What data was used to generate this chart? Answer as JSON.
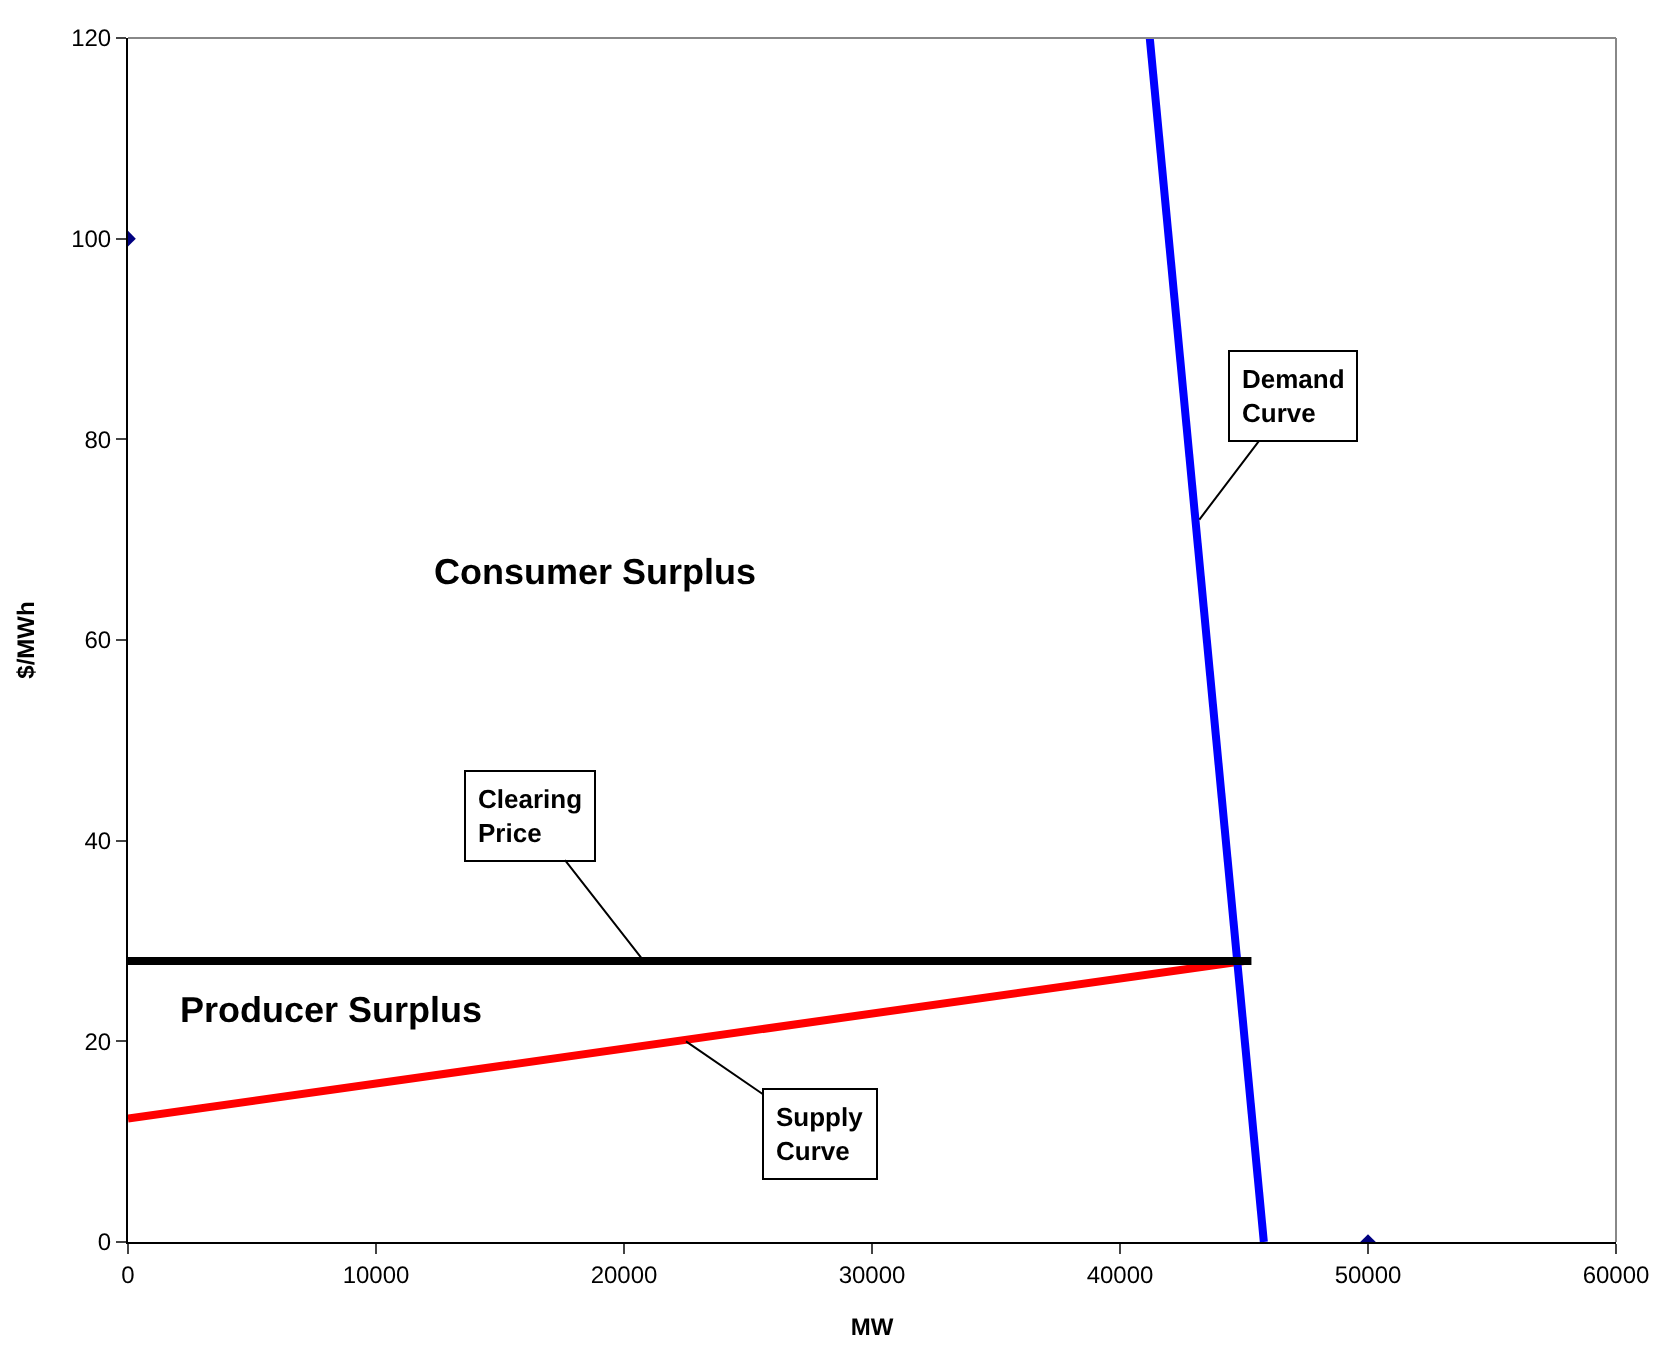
{
  "chart_data": {
    "type": "line",
    "xlabel": "MW",
    "ylabel": "$/MWh",
    "xlim": [
      0,
      60000
    ],
    "xticks": [
      0,
      10000,
      20000,
      30000,
      40000,
      50000,
      60000
    ],
    "ylim": [
      0,
      120
    ],
    "yticks": [
      0,
      20,
      40,
      60,
      80,
      100,
      120
    ],
    "marker": "none",
    "line_style": "solid",
    "series": [
      {
        "color": "#ff0000",
        "x": [
          0,
          45000
        ],
        "values": [
          12.3,
          28
        ]
      },
      {
        "color": "#0000ff",
        "x": [
          41200,
          45800
        ],
        "values": [
          120,
          0
        ]
      },
      {
        "color": "#000000",
        "x": [
          0,
          45300
        ],
        "values": [
          28,
          28
        ]
      },
      {
        "type": "scatter",
        "color": "#000080",
        "marker": "diamond",
        "x": [
          0,
          50000
        ],
        "values": [
          100,
          0
        ]
      }
    ],
    "annotations": [
      "Consumer Surplus",
      "Producer Surplus",
      {
        "text": "Clearing\nPrice",
        "x": 20800,
        "y": 28
      },
      {
        "text": "Supply\nCurve",
        "x": 22500,
        "y": 20
      },
      {
        "text": "Demand\nCurve",
        "x": 43200,
        "y": 72
      }
    ]
  }
}
